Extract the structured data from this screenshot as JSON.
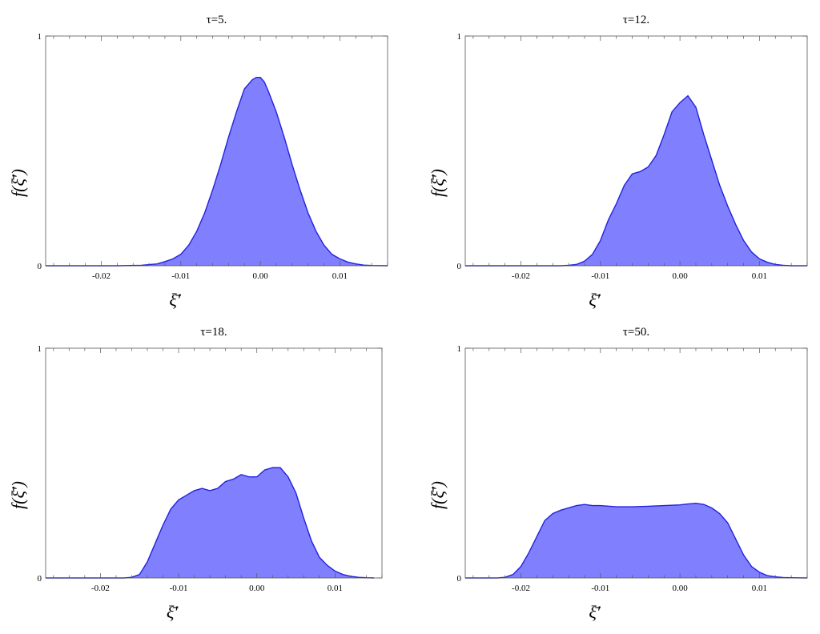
{
  "chart_data": [
    {
      "type": "area",
      "title": "τ=5.",
      "xlabel": "ξ̄′",
      "ylabel": "f(ξ̄′)",
      "xlim": [
        -0.027,
        0.016
      ],
      "ylim": [
        0,
        1
      ],
      "xticks": [
        -0.02,
        -0.01,
        0.0,
        0.01
      ],
      "xtick_labels": [
        "-0.02",
        "-0.01",
        "0.00",
        "0.01"
      ],
      "yticks": [
        0,
        1
      ],
      "ytick_labels": [
        "0",
        "1"
      ],
      "grid": false,
      "fill_color": "#8080ff",
      "line_color": "#2222dd",
      "x": [
        -0.027,
        -0.018,
        -0.015,
        -0.013,
        -0.012,
        -0.011,
        -0.01,
        -0.009,
        -0.008,
        -0.007,
        -0.006,
        -0.005,
        -0.004,
        -0.003,
        -0.002,
        -0.001,
        -0.0005,
        0.0,
        0.0005,
        0.001,
        0.002,
        0.003,
        0.004,
        0.005,
        0.006,
        0.007,
        0.008,
        0.009,
        0.01,
        0.011,
        0.012,
        0.013,
        0.014,
        0.016
      ],
      "y": [
        0.0,
        0.0,
        0.002,
        0.008,
        0.018,
        0.03,
        0.05,
        0.09,
        0.15,
        0.23,
        0.33,
        0.44,
        0.56,
        0.67,
        0.77,
        0.81,
        0.82,
        0.82,
        0.8,
        0.76,
        0.67,
        0.56,
        0.44,
        0.33,
        0.23,
        0.15,
        0.09,
        0.05,
        0.03,
        0.016,
        0.008,
        0.003,
        0.001,
        0.0
      ]
    },
    {
      "type": "area",
      "title": "τ=12.",
      "xlabel": "ξ̄′",
      "ylabel": "f(ξ̄′)",
      "xlim": [
        -0.027,
        0.016
      ],
      "ylim": [
        0,
        1
      ],
      "xticks": [
        -0.02,
        -0.01,
        0.0,
        0.01
      ],
      "xtick_labels": [
        "-0.02",
        "-0.01",
        "0.00",
        "0.01"
      ],
      "yticks": [
        0,
        1
      ],
      "ytick_labels": [
        "0",
        "1"
      ],
      "grid": false,
      "fill_color": "#8080ff",
      "line_color": "#2222dd",
      "x": [
        -0.027,
        -0.015,
        -0.014,
        -0.013,
        -0.012,
        -0.011,
        -0.01,
        -0.009,
        -0.008,
        -0.007,
        -0.006,
        -0.005,
        -0.004,
        -0.003,
        -0.002,
        -0.001,
        0.0,
        0.001,
        0.002,
        0.003,
        0.004,
        0.005,
        0.006,
        0.007,
        0.008,
        0.009,
        0.01,
        0.011,
        0.012,
        0.013,
        0.014,
        0.016
      ],
      "y": [
        0.0,
        0.0,
        0.002,
        0.006,
        0.02,
        0.05,
        0.11,
        0.2,
        0.27,
        0.35,
        0.4,
        0.41,
        0.43,
        0.48,
        0.57,
        0.67,
        0.71,
        0.74,
        0.69,
        0.57,
        0.46,
        0.35,
        0.26,
        0.18,
        0.11,
        0.06,
        0.03,
        0.015,
        0.006,
        0.002,
        0.0,
        0.0
      ]
    },
    {
      "type": "area",
      "title": "τ=18.",
      "xlabel": "ξ̄′",
      "ylabel": "f(ξ̄′)",
      "xlim": [
        -0.027,
        0.016
      ],
      "ylim": [
        0,
        1
      ],
      "xticks": [
        -0.02,
        -0.01,
        0.0,
        0.01
      ],
      "xtick_labels": [
        "-0.02",
        "-0.01",
        "0.00",
        "0.01"
      ],
      "yticks": [
        0,
        1
      ],
      "ytick_labels": [
        "0",
        "1"
      ],
      "grid": false,
      "fill_color": "#8080ff",
      "line_color": "#2222dd",
      "x": [
        -0.027,
        -0.017,
        -0.016,
        -0.015,
        -0.014,
        -0.013,
        -0.012,
        -0.011,
        -0.01,
        -0.009,
        -0.008,
        -0.007,
        -0.006,
        -0.005,
        -0.004,
        -0.003,
        -0.002,
        -0.001,
        0.0,
        0.001,
        0.002,
        0.003,
        0.004,
        0.005,
        0.006,
        0.007,
        0.008,
        0.009,
        0.01,
        0.011,
        0.012,
        0.013,
        0.014,
        0.015
      ],
      "y": [
        0.0,
        0.0,
        0.003,
        0.015,
        0.07,
        0.15,
        0.23,
        0.3,
        0.34,
        0.36,
        0.38,
        0.39,
        0.38,
        0.39,
        0.42,
        0.43,
        0.45,
        0.44,
        0.44,
        0.47,
        0.48,
        0.48,
        0.44,
        0.37,
        0.26,
        0.16,
        0.09,
        0.055,
        0.03,
        0.015,
        0.007,
        0.003,
        0.001,
        0.0
      ]
    },
    {
      "type": "area",
      "title": "τ=50.",
      "xlabel": "ξ̄′",
      "ylabel": "f(ξ̄′)",
      "xlim": [
        -0.027,
        0.016
      ],
      "ylim": [
        0,
        1
      ],
      "xticks": [
        -0.02,
        -0.01,
        0.0,
        0.01
      ],
      "xtick_labels": [
        "-0.02",
        "-0.01",
        "0.00",
        "0.01"
      ],
      "yticks": [
        0,
        1
      ],
      "ytick_labels": [
        "0",
        "1"
      ],
      "grid": false,
      "fill_color": "#8080ff",
      "line_color": "#2222dd",
      "x": [
        -0.027,
        -0.023,
        -0.022,
        -0.021,
        -0.02,
        -0.019,
        -0.018,
        -0.017,
        -0.016,
        -0.015,
        -0.014,
        -0.013,
        -0.012,
        -0.011,
        -0.01,
        -0.008,
        -0.006,
        -0.004,
        -0.002,
        0.0,
        0.001,
        0.002,
        0.003,
        0.004,
        0.005,
        0.006,
        0.007,
        0.008,
        0.009,
        0.01,
        0.011,
        0.012,
        0.013,
        0.014,
        0.016
      ],
      "y": [
        0.0,
        0.0,
        0.003,
        0.015,
        0.05,
        0.11,
        0.18,
        0.25,
        0.28,
        0.295,
        0.305,
        0.315,
        0.32,
        0.315,
        0.315,
        0.31,
        0.31,
        0.312,
        0.315,
        0.318,
        0.322,
        0.325,
        0.32,
        0.305,
        0.28,
        0.24,
        0.17,
        0.1,
        0.05,
        0.025,
        0.01,
        0.005,
        0.002,
        0.001,
        0.0
      ]
    }
  ]
}
